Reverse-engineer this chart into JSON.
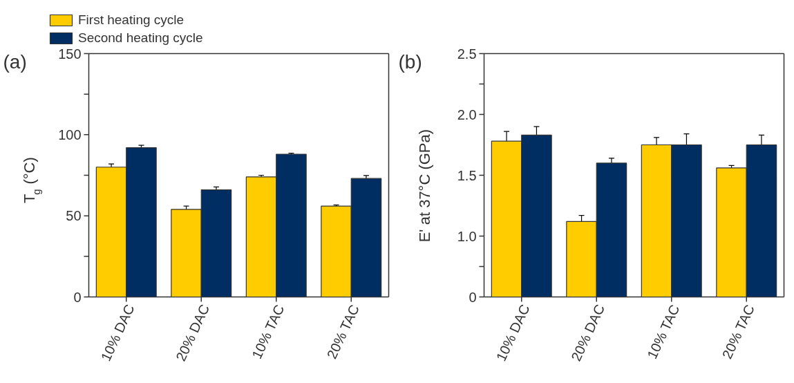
{
  "chart_data": [
    {
      "type": "bar",
      "title": "(a)",
      "ylabel": "T$_{g}$ (°C)",
      "categories": [
        "10% DAC",
        "20% DAC",
        "10% TAC",
        "20% TAC"
      ],
      "series": [
        {
          "name": "First heating cycle",
          "color": "#ffcc00",
          "values": [
            80,
            54,
            74,
            56
          ],
          "errors": [
            2,
            2,
            1,
            0.7
          ]
        },
        {
          "name": "Second heating cycle",
          "color": "#002d62",
          "values": [
            92,
            66,
            88,
            73
          ],
          "errors": [
            1.5,
            1.8,
            0.6,
            1.8
          ]
        }
      ],
      "ylim": [
        0,
        150
      ],
      "yticks": [
        0,
        {
          "value": 25,
          "label": null
        },
        50,
        {
          "value": 75,
          "label": null
        },
        100,
        {
          "value": 125,
          "label": null
        },
        150
      ],
      "legend": "top"
    },
    {
      "type": "bar",
      "title": "(b)",
      "ylabel": "E' at 37°C (GPa)",
      "categories": [
        "10% DAC",
        "20% DAC",
        "10% TAC",
        "20% TAC"
      ],
      "series": [
        {
          "color": "#ffcc00",
          "values": [
            1.78,
            1.12,
            1.75,
            1.56
          ],
          "errors": [
            0.08,
            0.05,
            0.06,
            0.02
          ]
        },
        {
          "color": "#002d62",
          "values": [
            1.83,
            1.6,
            1.75,
            1.75
          ],
          "errors": [
            0.07,
            0.04,
            0.09,
            0.08
          ]
        }
      ],
      "ylim": [
        0.5,
        2.5
      ],
      "yticks": [
        {
          "value": 0.5,
          "label": "0"
        },
        {
          "value": 0.75,
          "label": null
        },
        "1.0",
        1.5,
        "2.0",
        {
          "value": 2.25,
          "label": null
        },
        2.5
      ]
    }
  ]
}
